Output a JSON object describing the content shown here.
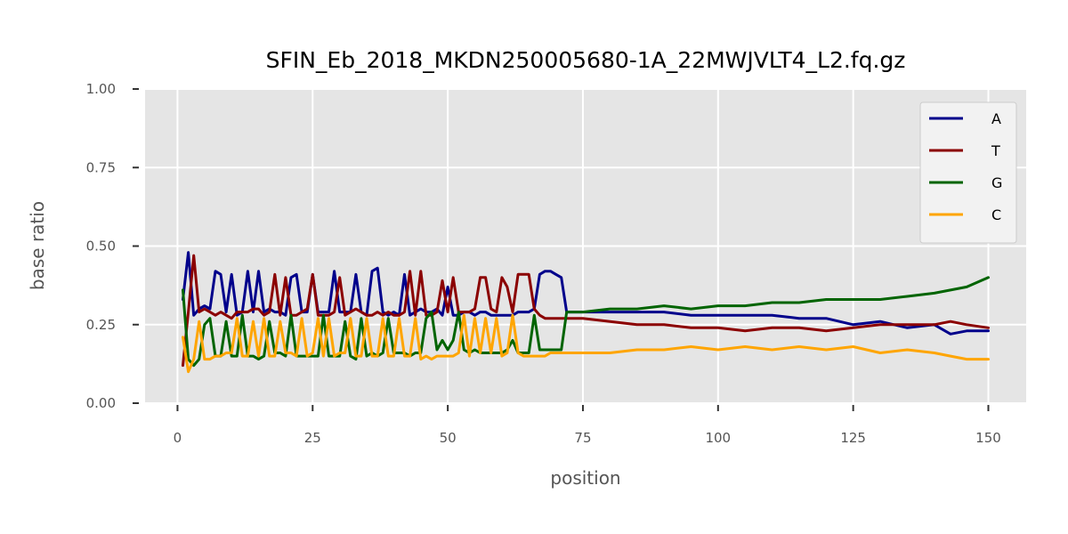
{
  "chart_data": {
    "type": "line",
    "title": "SFIN_Eb_2018_MKDN250005680-1A_22MWJVLT4_L2.fq.gz",
    "xlabel": "position",
    "ylabel": "base ratio",
    "xlim": [
      -6,
      157
    ],
    "ylim": [
      0,
      1
    ],
    "xticks": [
      0,
      25,
      50,
      75,
      100,
      125,
      150
    ],
    "yticks": [
      0.0,
      0.25,
      0.5,
      0.75,
      1.0
    ],
    "xtick_labels": [
      "0",
      "25",
      "50",
      "75",
      "100",
      "125",
      "150"
    ],
    "ytick_labels": [
      "0.00",
      "0.25",
      "0.50",
      "0.75",
      "1.00"
    ],
    "grid": true,
    "background": "#e5e5e5",
    "legend_position": "top-right",
    "series": [
      {
        "name": "A",
        "color": "#00008b",
        "x": [
          1,
          2,
          3,
          4,
          5,
          6,
          7,
          8,
          9,
          10,
          11,
          12,
          13,
          14,
          15,
          16,
          17,
          18,
          19,
          20,
          21,
          22,
          23,
          24,
          25,
          26,
          27,
          28,
          29,
          30,
          31,
          32,
          33,
          34,
          35,
          36,
          37,
          38,
          39,
          40,
          41,
          42,
          43,
          44,
          45,
          46,
          47,
          48,
          49,
          50,
          51,
          52,
          53,
          54,
          55,
          56,
          57,
          58,
          59,
          60,
          61,
          62,
          63,
          64,
          65,
          66,
          67,
          68,
          69,
          70,
          71,
          72,
          75,
          80,
          85,
          90,
          95,
          100,
          105,
          110,
          115,
          120,
          125,
          130,
          135,
          140,
          143,
          146,
          150
        ],
        "values": [
          0.33,
          0.48,
          0.28,
          0.3,
          0.31,
          0.3,
          0.42,
          0.41,
          0.29,
          0.41,
          0.28,
          0.29,
          0.42,
          0.29,
          0.42,
          0.29,
          0.3,
          0.29,
          0.29,
          0.28,
          0.4,
          0.41,
          0.29,
          0.29,
          0.41,
          0.29,
          0.29,
          0.29,
          0.42,
          0.29,
          0.29,
          0.29,
          0.41,
          0.29,
          0.28,
          0.42,
          0.43,
          0.29,
          0.28,
          0.29,
          0.28,
          0.41,
          0.28,
          0.29,
          0.3,
          0.29,
          0.29,
          0.3,
          0.28,
          0.37,
          0.28,
          0.28,
          0.29,
          0.29,
          0.28,
          0.29,
          0.29,
          0.28,
          0.28,
          0.28,
          0.28,
          0.28,
          0.29,
          0.29,
          0.29,
          0.3,
          0.41,
          0.42,
          0.42,
          0.41,
          0.4,
          0.29,
          0.29,
          0.29,
          0.29,
          0.29,
          0.28,
          0.28,
          0.28,
          0.28,
          0.27,
          0.27,
          0.25,
          0.26,
          0.24,
          0.25,
          0.22,
          0.23,
          0.23
        ]
      },
      {
        "name": "T",
        "color": "#8b0000",
        "x": [
          1,
          2,
          3,
          4,
          5,
          6,
          7,
          8,
          9,
          10,
          11,
          12,
          13,
          14,
          15,
          16,
          17,
          18,
          19,
          20,
          21,
          22,
          23,
          24,
          25,
          26,
          27,
          28,
          29,
          30,
          31,
          32,
          33,
          34,
          35,
          36,
          37,
          38,
          39,
          40,
          41,
          42,
          43,
          44,
          45,
          46,
          47,
          48,
          49,
          50,
          51,
          52,
          53,
          54,
          55,
          56,
          57,
          58,
          59,
          60,
          61,
          62,
          63,
          64,
          65,
          66,
          67,
          68,
          69,
          70,
          71,
          72,
          75,
          80,
          85,
          90,
          95,
          100,
          105,
          110,
          115,
          120,
          125,
          130,
          135,
          140,
          143,
          146,
          150
        ],
        "values": [
          0.12,
          0.29,
          0.47,
          0.29,
          0.3,
          0.29,
          0.28,
          0.29,
          0.28,
          0.27,
          0.29,
          0.29,
          0.29,
          0.3,
          0.3,
          0.28,
          0.29,
          0.41,
          0.28,
          0.4,
          0.28,
          0.28,
          0.29,
          0.3,
          0.41,
          0.28,
          0.28,
          0.28,
          0.29,
          0.4,
          0.28,
          0.29,
          0.3,
          0.29,
          0.28,
          0.28,
          0.29,
          0.28,
          0.29,
          0.28,
          0.28,
          0.29,
          0.42,
          0.28,
          0.42,
          0.28,
          0.28,
          0.29,
          0.39,
          0.29,
          0.4,
          0.29,
          0.29,
          0.29,
          0.3,
          0.4,
          0.4,
          0.3,
          0.29,
          0.4,
          0.37,
          0.29,
          0.41,
          0.41,
          0.41,
          0.3,
          0.28,
          0.27,
          0.27,
          0.27,
          0.27,
          0.27,
          0.27,
          0.26,
          0.25,
          0.25,
          0.24,
          0.24,
          0.23,
          0.24,
          0.24,
          0.23,
          0.24,
          0.25,
          0.25,
          0.25,
          0.26,
          0.25,
          0.24
        ]
      },
      {
        "name": "G",
        "color": "#006400",
        "x": [
          1,
          2,
          3,
          4,
          5,
          6,
          7,
          8,
          9,
          10,
          11,
          12,
          13,
          14,
          15,
          16,
          17,
          18,
          19,
          20,
          21,
          22,
          23,
          24,
          25,
          26,
          27,
          28,
          29,
          30,
          31,
          32,
          33,
          34,
          35,
          36,
          37,
          38,
          39,
          40,
          41,
          42,
          43,
          44,
          45,
          46,
          47,
          48,
          49,
          50,
          51,
          52,
          53,
          54,
          55,
          56,
          57,
          58,
          59,
          60,
          61,
          62,
          63,
          64,
          65,
          66,
          67,
          68,
          69,
          70,
          71,
          72,
          75,
          80,
          85,
          90,
          95,
          100,
          105,
          110,
          115,
          120,
          125,
          130,
          135,
          140,
          143,
          146,
          150
        ],
        "values": [
          0.36,
          0.14,
          0.12,
          0.14,
          0.25,
          0.27,
          0.15,
          0.15,
          0.26,
          0.15,
          0.15,
          0.28,
          0.15,
          0.15,
          0.14,
          0.15,
          0.26,
          0.16,
          0.16,
          0.15,
          0.28,
          0.15,
          0.15,
          0.15,
          0.15,
          0.15,
          0.28,
          0.15,
          0.15,
          0.15,
          0.26,
          0.15,
          0.14,
          0.27,
          0.15,
          0.16,
          0.15,
          0.16,
          0.27,
          0.16,
          0.16,
          0.16,
          0.15,
          0.16,
          0.16,
          0.27,
          0.29,
          0.17,
          0.2,
          0.17,
          0.2,
          0.29,
          0.17,
          0.16,
          0.17,
          0.16,
          0.16,
          0.16,
          0.16,
          0.16,
          0.17,
          0.2,
          0.16,
          0.16,
          0.16,
          0.28,
          0.17,
          0.17,
          0.17,
          0.17,
          0.17,
          0.29,
          0.29,
          0.3,
          0.3,
          0.31,
          0.3,
          0.31,
          0.31,
          0.32,
          0.32,
          0.33,
          0.33,
          0.33,
          0.34,
          0.35,
          0.36,
          0.37,
          0.4
        ]
      },
      {
        "name": "C",
        "color": "#ffa500",
        "x": [
          1,
          2,
          3,
          4,
          5,
          6,
          7,
          8,
          9,
          10,
          11,
          12,
          13,
          14,
          15,
          16,
          17,
          18,
          19,
          20,
          21,
          22,
          23,
          24,
          25,
          26,
          27,
          28,
          29,
          30,
          31,
          32,
          33,
          34,
          35,
          36,
          37,
          38,
          39,
          40,
          41,
          42,
          43,
          44,
          45,
          46,
          47,
          48,
          49,
          50,
          51,
          52,
          53,
          54,
          55,
          56,
          57,
          58,
          59,
          60,
          61,
          62,
          63,
          64,
          65,
          66,
          67,
          68,
          69,
          70,
          71,
          72,
          75,
          80,
          85,
          90,
          95,
          100,
          105,
          110,
          115,
          120,
          125,
          130,
          135,
          140,
          143,
          146,
          150
        ],
        "values": [
          0.21,
          0.1,
          0.14,
          0.26,
          0.14,
          0.14,
          0.15,
          0.15,
          0.16,
          0.16,
          0.27,
          0.15,
          0.15,
          0.26,
          0.15,
          0.27,
          0.15,
          0.15,
          0.26,
          0.16,
          0.16,
          0.15,
          0.27,
          0.15,
          0.16,
          0.27,
          0.15,
          0.27,
          0.15,
          0.16,
          0.16,
          0.27,
          0.15,
          0.15,
          0.27,
          0.15,
          0.15,
          0.27,
          0.15,
          0.15,
          0.27,
          0.15,
          0.15,
          0.27,
          0.14,
          0.15,
          0.14,
          0.15,
          0.15,
          0.15,
          0.15,
          0.16,
          0.28,
          0.15,
          0.27,
          0.16,
          0.27,
          0.16,
          0.27,
          0.15,
          0.16,
          0.28,
          0.16,
          0.15,
          0.15,
          0.15,
          0.15,
          0.15,
          0.16,
          0.16,
          0.16,
          0.16,
          0.16,
          0.16,
          0.17,
          0.17,
          0.18,
          0.17,
          0.18,
          0.17,
          0.18,
          0.17,
          0.18,
          0.16,
          0.17,
          0.16,
          0.15,
          0.14,
          0.14
        ]
      }
    ]
  }
}
